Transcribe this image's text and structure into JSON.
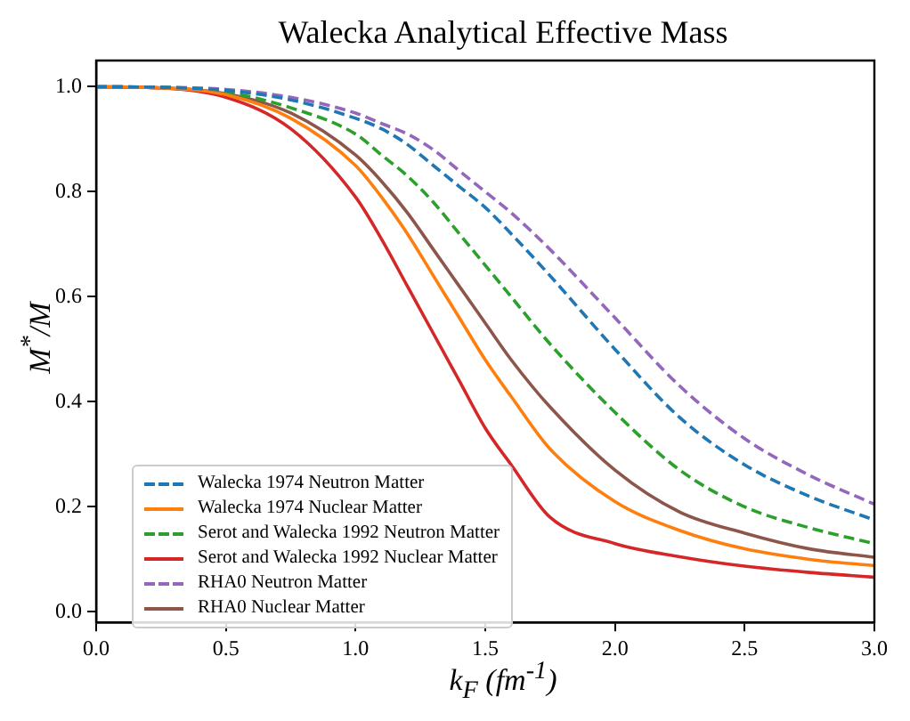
{
  "chart_data": {
    "type": "line",
    "title": "Walecka Analytical Effective Mass",
    "xlabel": "k$_{F}$ (fm$^{-1}$)",
    "ylabel": "M$^{*}$/M",
    "x": [
      0,
      0.25,
      0.5,
      0.75,
      1.0,
      1.1,
      1.2,
      1.3,
      1.4,
      1.5,
      1.6,
      1.75,
      2.0,
      2.25,
      2.5,
      2.75,
      3.0
    ],
    "series": [
      {
        "name": "Walecka 1974 Neutron Matter",
        "color": "#1f77b4",
        "line_style": "dashed",
        "values": [
          1,
          0.999,
          0.993,
          0.975,
          0.94,
          0.92,
          0.89,
          0.85,
          0.81,
          0.77,
          0.72,
          0.64,
          0.5,
          0.37,
          0.28,
          0.22,
          0.175
        ]
      },
      {
        "name": "Walecka 1974 Nuclear Matter",
        "color": "#ff7f0e",
        "line_style": "solid",
        "values": [
          1,
          0.998,
          0.985,
          0.94,
          0.85,
          0.79,
          0.72,
          0.64,
          0.56,
          0.48,
          0.41,
          0.31,
          0.21,
          0.155,
          0.12,
          0.1,
          0.088
        ]
      },
      {
        "name": "Serot and Walecka 1992 Neutron Matter",
        "color": "#2ca02c",
        "line_style": "dashed",
        "values": [
          1,
          0.999,
          0.99,
          0.96,
          0.91,
          0.87,
          0.83,
          0.78,
          0.72,
          0.66,
          0.6,
          0.51,
          0.38,
          0.27,
          0.2,
          0.16,
          0.13
        ]
      },
      {
        "name": "Serot and Walecka 1992 Nuclear Matter",
        "color": "#d62728",
        "line_style": "solid",
        "values": [
          1,
          0.998,
          0.98,
          0.92,
          0.79,
          0.71,
          0.62,
          0.53,
          0.44,
          0.35,
          0.28,
          0.18,
          0.13,
          0.105,
          0.087,
          0.075,
          0.066
        ]
      },
      {
        "name": "RHA0 Neutron Matter",
        "color": "#9467bd",
        "line_style": "dashed",
        "values": [
          1,
          0.999,
          0.995,
          0.98,
          0.95,
          0.93,
          0.91,
          0.88,
          0.84,
          0.8,
          0.76,
          0.69,
          0.56,
          0.43,
          0.33,
          0.26,
          0.205
        ]
      },
      {
        "name": "RHA0 Nuclear Matter",
        "color": "#8c564b",
        "line_style": "solid",
        "values": [
          1,
          0.998,
          0.987,
          0.95,
          0.87,
          0.82,
          0.76,
          0.69,
          0.62,
          0.55,
          0.48,
          0.39,
          0.27,
          0.19,
          0.15,
          0.12,
          0.104
        ]
      }
    ],
    "xlim": [
      0,
      3
    ],
    "xticks": [
      {
        "value": 0,
        "label": "0.0"
      },
      {
        "value": 0.5,
        "label": "0.5"
      },
      {
        "value": 1,
        "label": "1.0"
      },
      {
        "value": 1.5,
        "label": "1.5"
      },
      {
        "value": 2,
        "label": "2.0"
      },
      {
        "value": 2.5,
        "label": "2.5"
      },
      {
        "value": 3,
        "label": "3.0"
      }
    ],
    "ylim": [
      -0.02,
      1.05
    ],
    "yticks": [
      {
        "value": 0,
        "label": "0.0"
      },
      {
        "value": 0.2,
        "label": "0.2"
      },
      {
        "value": 0.4,
        "label": "0.4"
      },
      {
        "value": 0.6,
        "label": "0.6"
      },
      {
        "value": 0.8,
        "label": "0.8"
      },
      {
        "value": 1,
        "label": "1.0"
      }
    ],
    "grid": false,
    "legend": "bottom left",
    "marker": "none"
  }
}
